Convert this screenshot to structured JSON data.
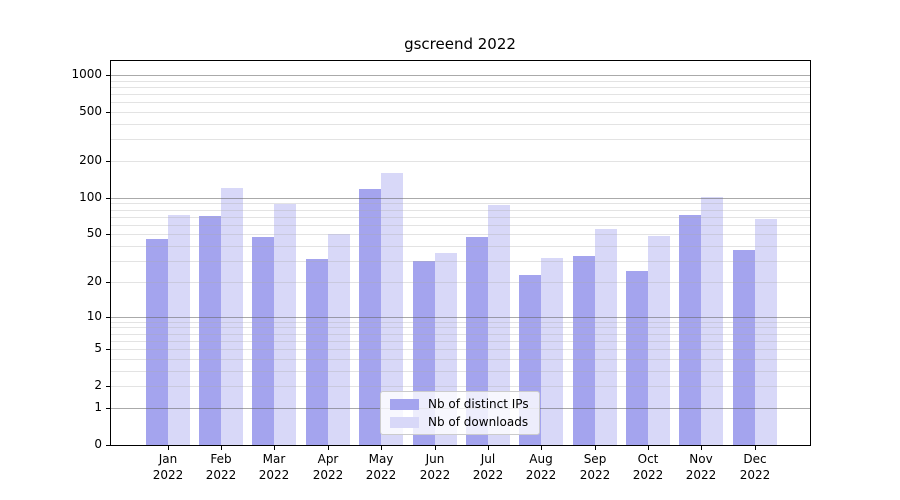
{
  "title": "gscreend 2022",
  "legend": {
    "items": [
      {
        "label": "Nb of distinct IPs",
        "color": "#a4a4ee"
      },
      {
        "label": "Nb of downloads",
        "color": "#d8d8f8"
      }
    ]
  },
  "colors": {
    "bar_distinct_ips": "#a4a4ee",
    "bar_downloads": "#d8d8f8",
    "grid_major": "rgba(100,100,100,0.55)",
    "grid_minor": "rgba(170,170,170,0.33)",
    "axis": "#000000",
    "legend_border": "#cccccc"
  },
  "chart_data": {
    "type": "bar",
    "title": "gscreend 2022",
    "categories": [
      "Jan 2022",
      "Feb 2022",
      "Mar 2022",
      "Apr 2022",
      "May 2022",
      "Jun 2022",
      "Jul 2022",
      "Aug 2022",
      "Sep 2022",
      "Oct 2022",
      "Nov 2022",
      "Dec 2022"
    ],
    "series": [
      {
        "name": "Nb of distinct IPs",
        "color": "#a4a4ee",
        "values": [
          46,
          71,
          48,
          31,
          118,
          30,
          48,
          23,
          33,
          25,
          72,
          37
        ]
      },
      {
        "name": "Nb of downloads",
        "color": "#d8d8f8",
        "values": [
          73,
          120,
          89,
          50,
          161,
          35,
          88,
          32,
          56,
          49,
          101,
          67
        ]
      }
    ],
    "xlabel": "",
    "ylabel": "",
    "yscale": "log1p",
    "yticks": [
      1000,
      500,
      200,
      100,
      50,
      20,
      10,
      5,
      2,
      1,
      0
    ],
    "ylim": [
      0,
      1300
    ],
    "grid": {
      "major_lines": [
        1,
        10,
        100,
        1000
      ],
      "minor_multipliers": [
        2,
        3,
        4,
        5,
        6,
        7,
        8,
        9
      ],
      "minor_decades": [
        1,
        10,
        100
      ]
    },
    "legend_position": "lower center"
  }
}
